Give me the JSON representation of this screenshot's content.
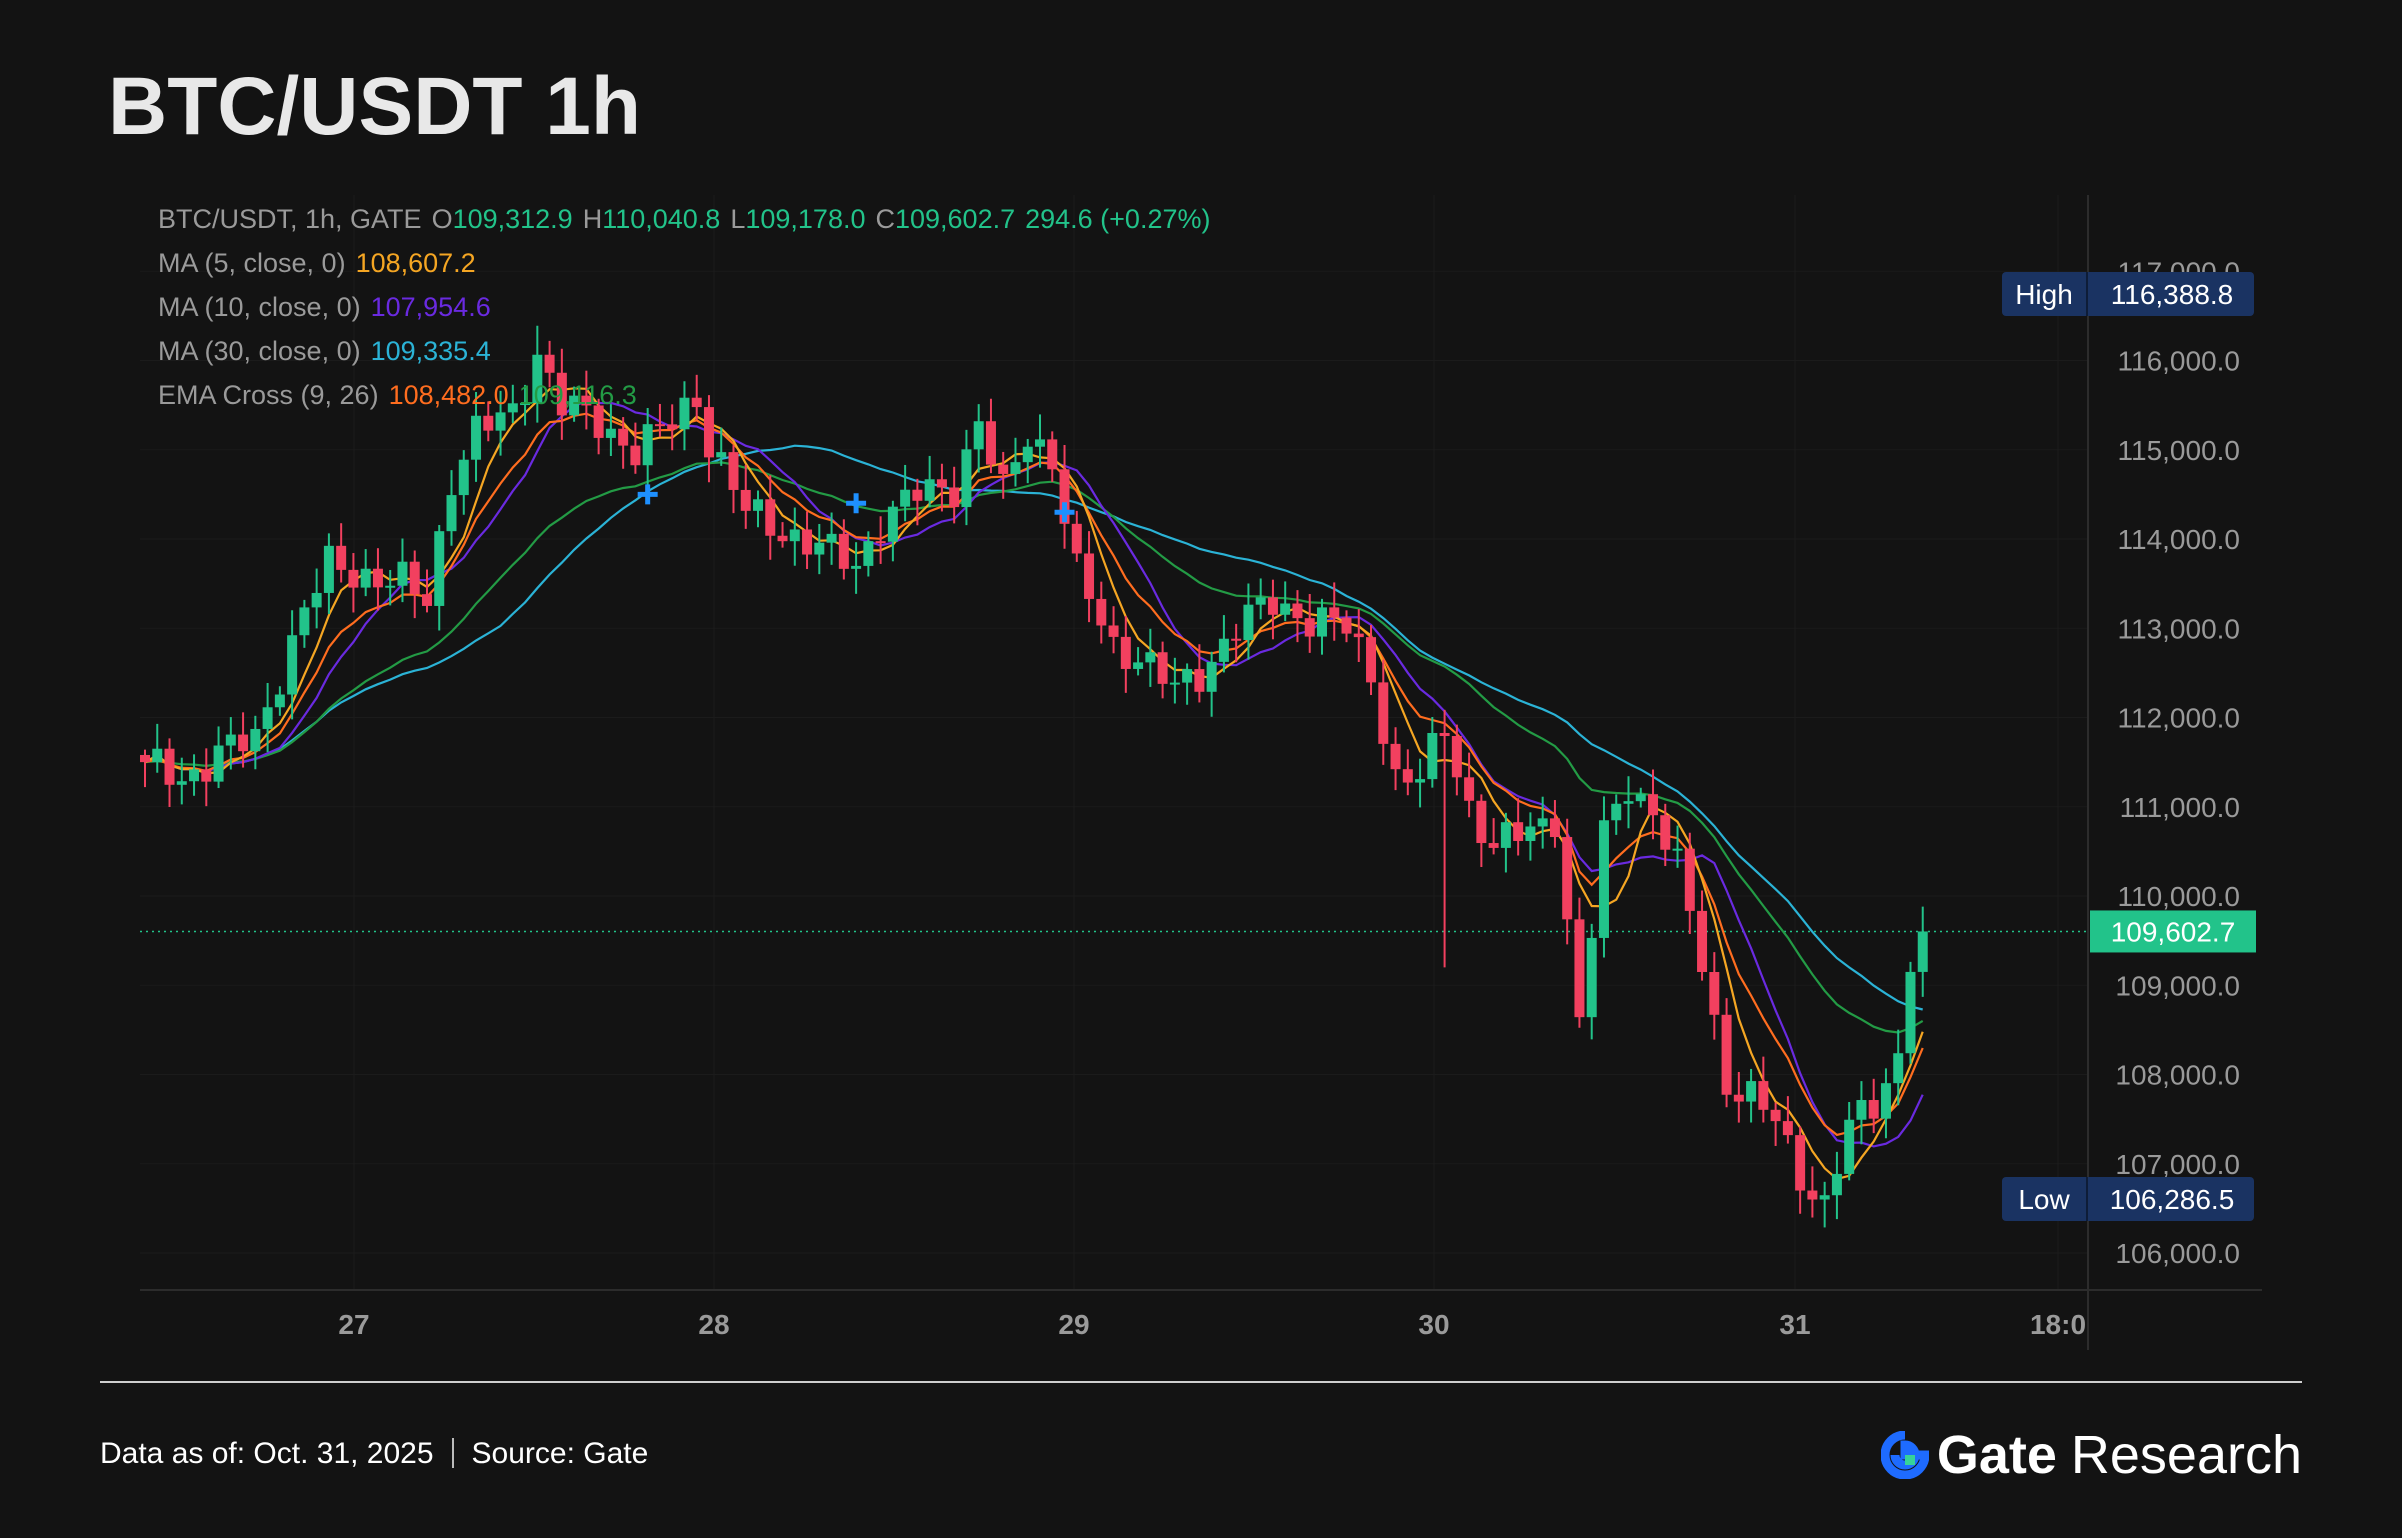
{
  "title": "BTC/USDT 1h",
  "legend": {
    "symbol_label": "BTC/USDT, 1h, GATE",
    "o_label": "O",
    "o_value": "109,312.9",
    "h_label": "H",
    "h_value": "110,040.8",
    "l_label": "L",
    "l_value": "109,178.0",
    "c_label": "C",
    "c_value": "109,602.7",
    "change": "294.6 (+0.27%)",
    "ma5_label": "MA (5, close, 0)",
    "ma5_value": "108,607.2",
    "ma10_label": "MA (10, close, 0)",
    "ma10_value": "107,954.6",
    "ma30_label": "MA (30, close, 0)",
    "ma30_value": "109,335.4",
    "ema_label": "EMA Cross (9, 26)",
    "ema_value1": "108,482.0",
    "ema_value2": "109,116.3"
  },
  "colors": {
    "up": "#22c38a",
    "down": "#f2405f",
    "ma5": "#f5a623",
    "ma10": "#6a2ae0",
    "ma30": "#2bb3d6",
    "ema9": "#ff6d1f",
    "ema26": "#239b45",
    "axis_text": "#9a9a9a",
    "marker": "#1e90ff"
  },
  "chart_data": {
    "type": "candlestick",
    "title": "BTC/USDT 1h",
    "x_ticks": [
      "27",
      "28",
      "29",
      "30",
      "31",
      "18:0"
    ],
    "y_ticks": [
      "117,000.0",
      "116,000.0",
      "115,000.0",
      "114,000.0",
      "113,000.0",
      "112,000.0",
      "111,000.0",
      "110,000.0",
      "109,000.0",
      "108,000.0",
      "107,000.0",
      "106,000.0"
    ],
    "ylim": [
      105300,
      118200
    ],
    "high_label": "High",
    "high_value": "116,388.8",
    "high": 116388.8,
    "low_label": "Low",
    "low_value": "106,286.5",
    "low": 106286.5,
    "last_value": "109,602.7",
    "last": 109602.7,
    "close_path": [
      [
        0,
        111500
      ],
      [
        3,
        111300
      ],
      [
        6,
        111600
      ],
      [
        9,
        111750
      ],
      [
        11,
        112500
      ],
      [
        13,
        113200
      ],
      [
        15,
        113700
      ],
      [
        18,
        113600
      ],
      [
        21,
        113500
      ],
      [
        23,
        113300
      ],
      [
        25,
        114700
      ],
      [
        27,
        115200
      ],
      [
        30,
        115400
      ],
      [
        32,
        116100
      ],
      [
        34,
        115500
      ],
      [
        37,
        115300
      ],
      [
        40,
        115000
      ],
      [
        43,
        115300
      ],
      [
        45,
        115600
      ],
      [
        46,
        115100
      ],
      [
        49,
        114300
      ],
      [
        52,
        114100
      ],
      [
        55,
        113900
      ],
      [
        58,
        113700
      ],
      [
        60,
        114200
      ],
      [
        63,
        114500
      ],
      [
        66,
        114600
      ],
      [
        68,
        115300
      ],
      [
        70,
        114500
      ],
      [
        72,
        115200
      ],
      [
        74,
        114900
      ],
      [
        76,
        113600
      ],
      [
        79,
        112800
      ],
      [
        81,
        112700
      ],
      [
        84,
        112300
      ],
      [
        86,
        112500
      ],
      [
        89,
        113000
      ],
      [
        92,
        113300
      ],
      [
        95,
        113100
      ],
      [
        98,
        113000
      ],
      [
        100,
        112500
      ],
      [
        102,
        111300
      ],
      [
        104,
        111300
      ],
      [
        106,
        111900
      ],
      [
        108,
        111000
      ],
      [
        110,
        110500
      ],
      [
        112,
        110700
      ],
      [
        115,
        110900
      ],
      [
        117,
        108500
      ],
      [
        119,
        110700
      ],
      [
        121,
        111300
      ],
      [
        123,
        110900
      ],
      [
        125,
        110300
      ],
      [
        127,
        109300
      ],
      [
        129,
        107900
      ],
      [
        131,
        107700
      ],
      [
        133,
        107500
      ],
      [
        135,
        106900
      ],
      [
        137,
        106500
      ],
      [
        139,
        107400
      ],
      [
        141,
        107700
      ],
      [
        143,
        108200
      ],
      [
        144,
        109300
      ],
      [
        145,
        109603
      ]
    ],
    "ema9_value": 108482.0,
    "ema26_value": 109116.3,
    "ma5_value": 108607.2,
    "ma10_value": 107954.6,
    "ma30_value": 109335.4
  },
  "footer": {
    "date_label": "Data as of: Oct. 31, 2025",
    "source_label": "Source:",
    "source_value": "Gate",
    "brand_gate": "Gate",
    "brand_research": "Research"
  }
}
